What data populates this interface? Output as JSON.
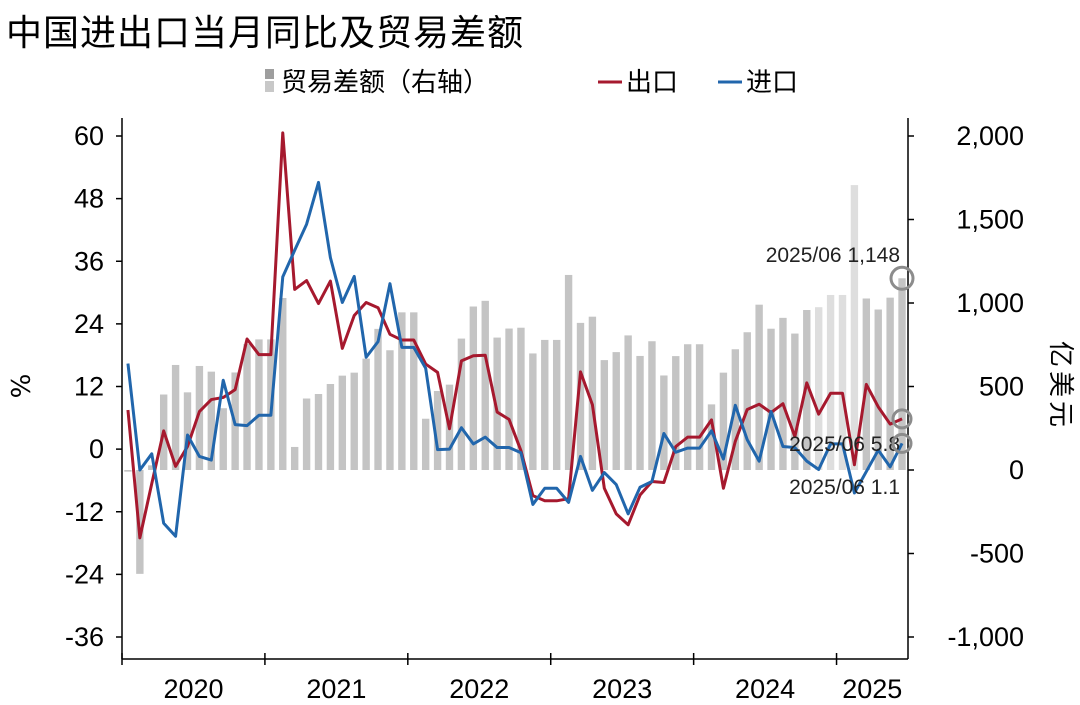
{
  "title": "中国进出口当月同比及贸易差额",
  "chart_data": {
    "type": "line+bar",
    "legend": [
      {
        "name": "贸易差额（右轴）",
        "kind": "bar",
        "color": "#bfbfbf"
      },
      {
        "name": "出口",
        "kind": "line",
        "color": "#a6192e"
      },
      {
        "name": "进口",
        "kind": "line",
        "color": "#2166ac"
      }
    ],
    "y_left": {
      "label": "%",
      "min": -36,
      "max": 60,
      "ticks": [
        60,
        48,
        36,
        24,
        12,
        0,
        -12,
        -24,
        -36
      ],
      "tick_labels": [
        "60",
        "48",
        "36",
        "24",
        "12",
        "0",
        "-12",
        "-24",
        "-36"
      ]
    },
    "y_right": {
      "label": "亿美元",
      "min": -1000,
      "max": 2000,
      "ticks": [
        2000,
        1500,
        1000,
        500,
        0,
        -500,
        -1000
      ],
      "tick_labels": [
        "2,000",
        "1,500",
        "1,000",
        "500",
        "0",
        "-500",
        "-1,000"
      ]
    },
    "x_years": [
      "2020",
      "2021",
      "2022",
      "2023",
      "2024",
      "2025"
    ],
    "months": [
      "2020/01",
      "2020/02",
      "2020/03",
      "2020/04",
      "2020/05",
      "2020/06",
      "2020/07",
      "2020/08",
      "2020/09",
      "2020/10",
      "2020/11",
      "2020/12",
      "2021/01",
      "2021/02",
      "2021/03",
      "2021/04",
      "2021/05",
      "2021/06",
      "2021/07",
      "2021/08",
      "2021/09",
      "2021/10",
      "2021/11",
      "2021/12",
      "2022/01",
      "2022/02",
      "2022/03",
      "2022/04",
      "2022/05",
      "2022/06",
      "2022/07",
      "2022/08",
      "2022/09",
      "2022/10",
      "2022/11",
      "2022/12",
      "2023/01",
      "2023/02",
      "2023/03",
      "2023/04",
      "2023/05",
      "2023/06",
      "2023/07",
      "2023/08",
      "2023/09",
      "2023/10",
      "2023/11",
      "2023/12",
      "2024/01",
      "2024/02",
      "2024/03",
      "2024/04",
      "2024/05",
      "2024/06",
      "2024/07",
      "2024/08",
      "2024/09",
      "2024/10",
      "2024/11",
      "2024/12",
      "2025/01",
      "2025/02",
      "2025/03",
      "2025/04",
      "2025/05",
      "2025/06"
    ],
    "series": [
      {
        "name": "出口",
        "values": [
          7.5,
          -17,
          -6.6,
          3.5,
          -3.3,
          0.5,
          7.2,
          9.5,
          9.9,
          11.4,
          21.1,
          18.1,
          18.1,
          60.6,
          30.6,
          32.3,
          27.9,
          32.2,
          19.3,
          25.6,
          28.1,
          27.1,
          22,
          20.9,
          20.9,
          16.3,
          14.7,
          3.9,
          16.9,
          17.9,
          18,
          7.1,
          5.7,
          -0.3,
          -8.9,
          -9.9,
          -9.9,
          -9.5,
          14.8,
          8.5,
          -7.5,
          -12.4,
          -14.5,
          -8.8,
          -6.2,
          -6.4,
          0.5,
          2.3,
          2.3,
          5.6,
          -7.5,
          1.5,
          7.6,
          8.6,
          7,
          8.7,
          2.4,
          12.7,
          6.7,
          10.7,
          10.7,
          -3,
          12.4,
          8.1,
          4.8,
          5.8
        ]
      },
      {
        "name": "进口",
        "values": [
          16.4,
          -4,
          -0.9,
          -14.2,
          -16.7,
          2.7,
          -1.4,
          -2.1,
          13.2,
          4.7,
          4.5,
          6.5,
          6.5,
          33,
          38.1,
          43.1,
          51.1,
          36.7,
          28.1,
          33.1,
          17.6,
          20.6,
          31.7,
          19.5,
          19.5,
          15.5,
          -0.1,
          0,
          4.1,
          1,
          2.3,
          0.3,
          0.3,
          -0.7,
          -10.6,
          -7.5,
          -7.5,
          -10.2,
          -1.4,
          -7.9,
          -4.5,
          -6.8,
          -12.4,
          -7.3,
          -6.2,
          3,
          -0.6,
          0.2,
          0.2,
          3.5,
          -1.9,
          8.4,
          1.8,
          -2.3,
          7.2,
          0.5,
          0.3,
          -2.3,
          -3.9,
          1,
          1,
          -8.4,
          -4.3,
          -0.2,
          -3.4,
          1.1
        ]
      },
      {
        "name": "贸易差额（右轴）",
        "axis": "right",
        "values": [
          -10,
          -622,
          28,
          452,
          629,
          465,
          623,
          589,
          370,
          584,
          754,
          782,
          782,
          1030,
          138,
          428,
          455,
          515,
          565,
          583,
          667,
          845,
          717,
          944,
          944,
          307,
          473,
          511,
          787,
          979,
          1013,
          793,
          847,
          852,
          698,
          779,
          779,
          1168,
          881,
          918,
          658,
          706,
          806,
          683,
          771,
          566,
          682,
          753,
          753,
          393,
          583,
          723,
          825,
          990,
          846,
          911,
          817,
          958,
          975,
          1048,
          1048,
          1706,
          1027,
          961,
          1032,
          1148
        ]
      }
    ],
    "annotations": [
      {
        "text": "2025/06 1,148",
        "series": "贸易差额（右轴）"
      },
      {
        "text": "2025/06 5.8",
        "series": "出口"
      },
      {
        "text": "2025/06 1.1",
        "series": "进口"
      }
    ]
  }
}
